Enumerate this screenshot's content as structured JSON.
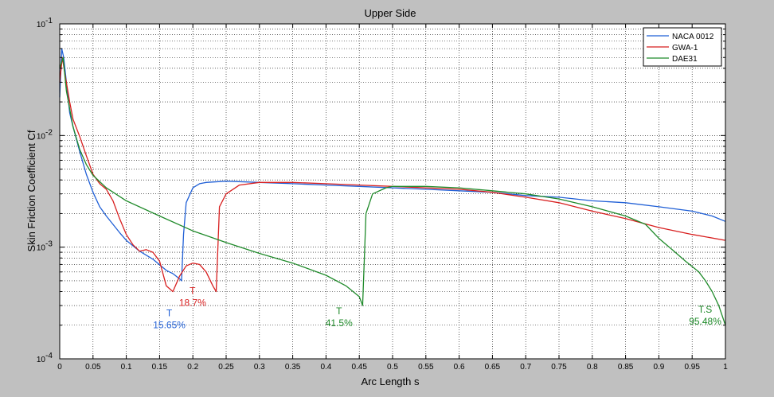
{
  "chart_data": {
    "type": "line",
    "title": "Upper Side",
    "xlabel": "Arc Length s",
    "ylabel": "Skin Friction Coefficient Cf",
    "xlim": [
      0,
      1
    ],
    "ylim": [
      0.0001,
      0.1
    ],
    "yscale": "log",
    "grid": true,
    "legend_position": "top-right",
    "x_ticks": [
      0,
      0.05,
      0.1,
      0.15,
      0.2,
      0.25,
      0.3,
      0.35,
      0.4,
      0.45,
      0.5,
      0.55,
      0.6,
      0.65,
      0.7,
      0.75,
      0.8,
      0.85,
      0.9,
      0.95,
      1
    ],
    "x_tick_labels": [
      "0",
      "0.05",
      "0.1",
      "0.15",
      "0.2",
      "0.25",
      "0.3",
      "0.35",
      "0.4",
      "0.45",
      "0.5",
      "0.55",
      "0.6",
      "0.65",
      "0.7",
      "0.75",
      "0.8",
      "0.85",
      "0.9",
      "0.95",
      "1"
    ],
    "y_ticks": [
      {
        "value": 0.0001,
        "base": "10",
        "exp": "-4"
      },
      {
        "value": 0.001,
        "base": "10",
        "exp": "-3"
      },
      {
        "value": 0.01,
        "base": "10",
        "exp": "-2"
      },
      {
        "value": 0.1,
        "base": "10",
        "exp": "-1"
      }
    ],
    "series": [
      {
        "name": "NACA 0012",
        "color": "#1f5fd6",
        "points": [
          [
            0,
            0.022
          ],
          [
            0.003,
            0.06
          ],
          [
            0.006,
            0.05
          ],
          [
            0.01,
            0.03
          ],
          [
            0.015,
            0.016
          ],
          [
            0.02,
            0.012
          ],
          [
            0.03,
            0.0072
          ],
          [
            0.04,
            0.0045
          ],
          [
            0.05,
            0.0031
          ],
          [
            0.06,
            0.0023
          ],
          [
            0.07,
            0.0019
          ],
          [
            0.08,
            0.0016
          ],
          [
            0.09,
            0.00135
          ],
          [
            0.1,
            0.00115
          ],
          [
            0.12,
            0.00092
          ],
          [
            0.14,
            0.00078
          ],
          [
            0.16,
            0.00062
          ],
          [
            0.17,
            0.00058
          ],
          [
            0.18,
            0.00052
          ],
          [
            0.183,
            0.0005
          ],
          [
            0.186,
            0.0013
          ],
          [
            0.19,
            0.0025
          ],
          [
            0.2,
            0.0034
          ],
          [
            0.21,
            0.0037
          ],
          [
            0.22,
            0.0038
          ],
          [
            0.25,
            0.0039
          ],
          [
            0.3,
            0.0038
          ],
          [
            0.35,
            0.0037
          ],
          [
            0.4,
            0.0036
          ],
          [
            0.45,
            0.0035
          ],
          [
            0.5,
            0.0034
          ],
          [
            0.55,
            0.0033
          ],
          [
            0.6,
            0.0032
          ],
          [
            0.65,
            0.0031
          ],
          [
            0.7,
            0.0029
          ],
          [
            0.75,
            0.0028
          ],
          [
            0.8,
            0.0026
          ],
          [
            0.85,
            0.0025
          ],
          [
            0.9,
            0.0023
          ],
          [
            0.95,
            0.0021
          ],
          [
            0.98,
            0.0019
          ],
          [
            1,
            0.0017
          ]
        ]
      },
      {
        "name": "GWA-1",
        "color": "#d81f1f",
        "points": [
          [
            0,
            0.03
          ],
          [
            0.004,
            0.05
          ],
          [
            0.008,
            0.035
          ],
          [
            0.015,
            0.02
          ],
          [
            0.02,
            0.014
          ],
          [
            0.03,
            0.0098
          ],
          [
            0.04,
            0.0066
          ],
          [
            0.05,
            0.0045
          ],
          [
            0.06,
            0.0037
          ],
          [
            0.07,
            0.0033
          ],
          [
            0.08,
            0.0026
          ],
          [
            0.09,
            0.0018
          ],
          [
            0.1,
            0.0013
          ],
          [
            0.11,
            0.00105
          ],
          [
            0.12,
            0.00092
          ],
          [
            0.13,
            0.00095
          ],
          [
            0.14,
            0.0009
          ],
          [
            0.15,
            0.00075
          ],
          [
            0.16,
            0.00045
          ],
          [
            0.17,
            0.0004
          ],
          [
            0.18,
            0.00055
          ],
          [
            0.19,
            0.00068
          ],
          [
            0.2,
            0.00072
          ],
          [
            0.21,
            0.0007
          ],
          [
            0.22,
            0.0006
          ],
          [
            0.23,
            0.00045
          ],
          [
            0.235,
            0.0004
          ],
          [
            0.24,
            0.0023
          ],
          [
            0.25,
            0.003
          ],
          [
            0.27,
            0.0036
          ],
          [
            0.3,
            0.0038
          ],
          [
            0.35,
            0.0038
          ],
          [
            0.4,
            0.0037
          ],
          [
            0.45,
            0.0036
          ],
          [
            0.5,
            0.0035
          ],
          [
            0.55,
            0.0034
          ],
          [
            0.6,
            0.0033
          ],
          [
            0.65,
            0.0031
          ],
          [
            0.7,
            0.0028
          ],
          [
            0.75,
            0.0025
          ],
          [
            0.8,
            0.0021
          ],
          [
            0.85,
            0.0018
          ],
          [
            0.9,
            0.0015
          ],
          [
            0.95,
            0.0013
          ],
          [
            1,
            0.00115
          ]
        ]
      },
      {
        "name": "DAE31",
        "color": "#1f8a2a",
        "points": [
          [
            0,
            0.04
          ],
          [
            0.005,
            0.05
          ],
          [
            0.01,
            0.025
          ],
          [
            0.02,
            0.012
          ],
          [
            0.03,
            0.0075
          ],
          [
            0.04,
            0.0055
          ],
          [
            0.05,
            0.0044
          ],
          [
            0.07,
            0.0034
          ],
          [
            0.1,
            0.0026
          ],
          [
            0.15,
            0.0019
          ],
          [
            0.2,
            0.0014
          ],
          [
            0.25,
            0.0011
          ],
          [
            0.3,
            0.00088
          ],
          [
            0.35,
            0.00072
          ],
          [
            0.4,
            0.00056
          ],
          [
            0.43,
            0.00045
          ],
          [
            0.45,
            0.00036
          ],
          [
            0.455,
            0.0003
          ],
          [
            0.46,
            0.002
          ],
          [
            0.47,
            0.003
          ],
          [
            0.49,
            0.0034
          ],
          [
            0.5,
            0.0035
          ],
          [
            0.55,
            0.0035
          ],
          [
            0.6,
            0.0034
          ],
          [
            0.65,
            0.0032
          ],
          [
            0.7,
            0.003
          ],
          [
            0.75,
            0.0027
          ],
          [
            0.8,
            0.0023
          ],
          [
            0.85,
            0.0019
          ],
          [
            0.88,
            0.0016
          ],
          [
            0.9,
            0.0012
          ],
          [
            0.92,
            0.00095
          ],
          [
            0.94,
            0.00075
          ],
          [
            0.96,
            0.0006
          ],
          [
            0.97,
            0.0005
          ],
          [
            0.98,
            0.0004
          ],
          [
            0.99,
            0.0003
          ],
          [
            1,
            0.0002
          ]
        ]
      }
    ],
    "annotations": [
      {
        "x": 0.155,
        "y": 0.00024,
        "lines": [
          "T",
          "15.65%"
        ],
        "color": "#1f5fd6"
      },
      {
        "x": 0.19,
        "y": 0.00038,
        "lines": [
          "T",
          "18.7%"
        ],
        "color": "#d81f1f"
      },
      {
        "x": 0.41,
        "y": 0.00025,
        "lines": [
          "T",
          "41.5%"
        ],
        "color": "#1f8a2a"
      },
      {
        "x": 0.96,
        "y": 0.00026,
        "lines": [
          "T.S",
          "95.48%"
        ],
        "color": "#1f8a2a"
      }
    ]
  }
}
